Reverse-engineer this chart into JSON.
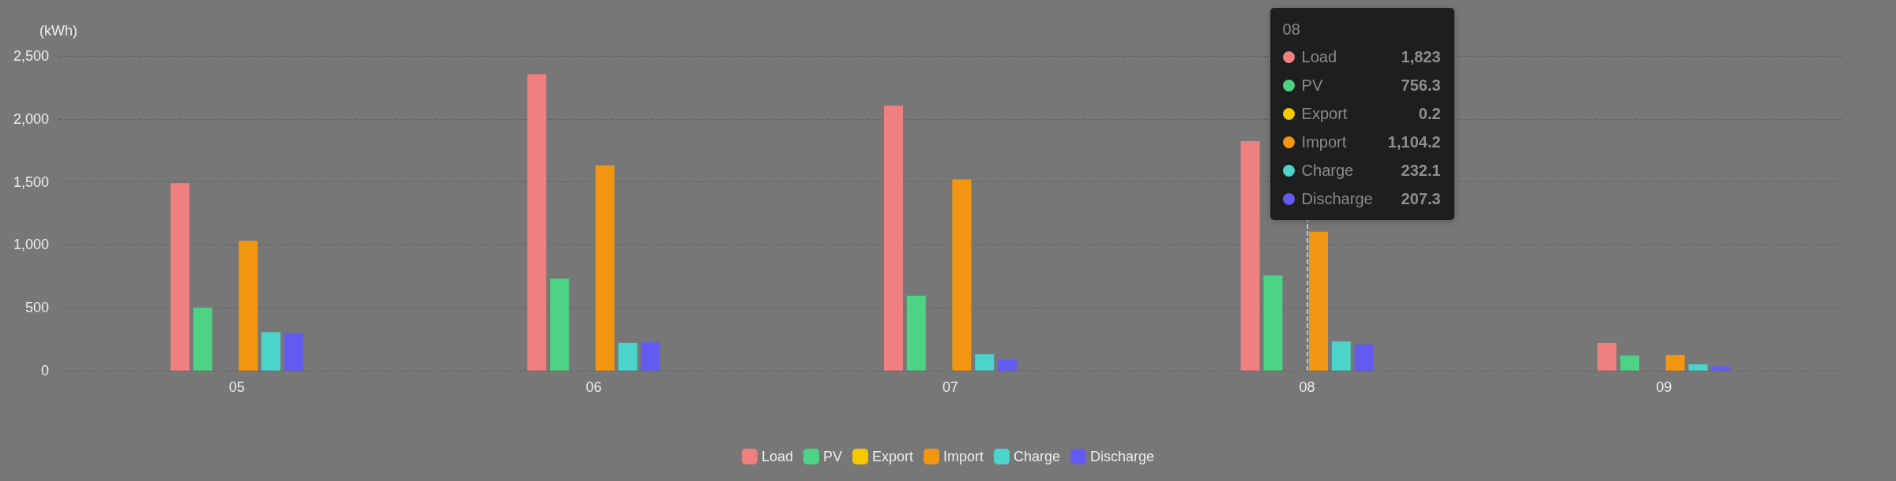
{
  "chart_data": {
    "type": "bar",
    "ylabel": "(kWh)",
    "categories": [
      "05",
      "06",
      "07",
      "08",
      "09"
    ],
    "series": [
      {
        "name": "Load",
        "color": "#f07f7f",
        "values": [
          1490,
          2355,
          2105,
          1823,
          220
        ]
      },
      {
        "name": "PV",
        "color": "#4cd384",
        "values": [
          500,
          730,
          595,
          756.3,
          120
        ]
      },
      {
        "name": "Export",
        "color": "#f5c800",
        "values": [
          0,
          0,
          0,
          0.2,
          0
        ]
      },
      {
        "name": "Import",
        "color": "#f29612",
        "values": [
          1030,
          1630,
          1520,
          1104.2,
          125
        ]
      },
      {
        "name": "Charge",
        "color": "#4dd4ca",
        "values": [
          305,
          220,
          130,
          232.1,
          50
        ]
      },
      {
        "name": "Discharge",
        "color": "#635bf0",
        "values": [
          300,
          225,
          90,
          207.3,
          35
        ]
      }
    ],
    "ylim": [
      0,
      2500
    ],
    "yticks": [
      0,
      500,
      {
        "value": 1000,
        "label": "1,000"
      },
      {
        "value": 1500,
        "label": "1,500"
      },
      {
        "value": 2000,
        "label": "2,000"
      },
      {
        "value": 2500,
        "label": "2,500"
      }
    ],
    "grid": "y",
    "legend": "bottom",
    "ref_lines": [
      {
        "axis": "x",
        "value": "08",
        "color": "#dddddd",
        "line_style": "dashed"
      }
    ],
    "annotations": [
      "1,823",
      "756.3",
      "0.2",
      "1,104.2",
      "232.1",
      "207.3"
    ]
  }
}
